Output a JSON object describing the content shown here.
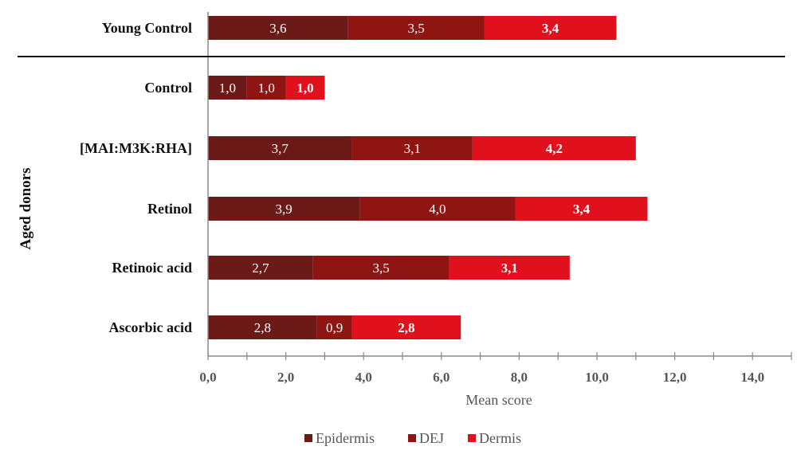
{
  "chart_data": {
    "type": "bar",
    "orientation": "horizontal",
    "stacked": true,
    "title": "",
    "xlabel": "Mean score",
    "ylabel": "Aged donors",
    "xlim": [
      0,
      15
    ],
    "xticks": [
      "0,0",
      "2,0",
      "4,0",
      "6,0",
      "8,0",
      "10,0",
      "12,0",
      "14,0"
    ],
    "xtick_values": [
      0,
      2,
      4,
      6,
      8,
      10,
      12,
      14
    ],
    "minor_tick_step": 1,
    "grid": false,
    "legend_position": "bottom",
    "categories": [
      "Young Control",
      "Control",
      "[MAI:M3K:RHA]",
      "Retinol",
      "Retinoic acid",
      "Ascorbic acid"
    ],
    "group_separator_after": "Young Control",
    "group_label": "Aged donors",
    "series": [
      {
        "name": "Epidermis",
        "color": "#6b1a17",
        "label_bold": false,
        "values": [
          3.6,
          1.0,
          3.7,
          3.9,
          2.7,
          2.8
        ],
        "labels": [
          "3,6",
          "1,0",
          "3,7",
          "3,9",
          "2,7",
          "2,8"
        ]
      },
      {
        "name": "DEJ",
        "color": "#8e1512",
        "label_bold": false,
        "values": [
          3.5,
          1.0,
          3.1,
          4.0,
          3.5,
          0.9
        ],
        "labels": [
          "3,5",
          "1,0",
          "3,1",
          "4,0",
          "3,5",
          "0,9"
        ]
      },
      {
        "name": "Dermis",
        "color": "#e0101c",
        "label_bold": true,
        "values": [
          3.4,
          1.0,
          4.2,
          3.4,
          3.1,
          2.8
        ],
        "labels": [
          "3,4",
          "1,0",
          "4,2",
          "3,4",
          "3,1",
          "2,8"
        ]
      }
    ]
  }
}
